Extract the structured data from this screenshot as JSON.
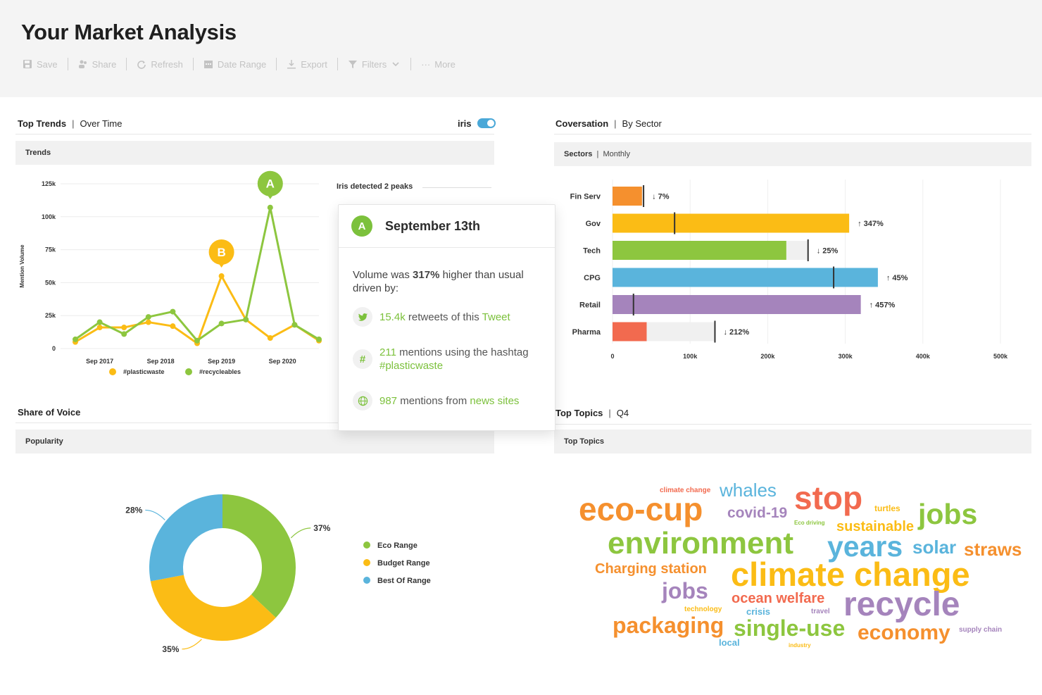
{
  "header": {
    "title": "Your Market Analysis",
    "toolbar": {
      "save": "Save",
      "share": "Share",
      "refresh": "Refresh",
      "date_range": "Date Range",
      "export": "Export",
      "filters": "Filters",
      "more": "More"
    }
  },
  "top_trends": {
    "title": "Top Trends",
    "subtitle": "Over Time",
    "toggle_label": "iris",
    "subbar": "Trends",
    "peaks_label": "Iris detected 2 peaks",
    "legend": [
      "#plasticwaste",
      "#recycleables"
    ],
    "peak_a": "A",
    "peak_b": "B"
  },
  "popup": {
    "badge": "A",
    "date": "September 13th",
    "msg_pre": "Volume was ",
    "msg_bold": "317%",
    "msg_post": " higher than usual driven by:",
    "row1_num": "15.4k",
    "row1_text": " retweets of this ",
    "row1_link": "Tweet",
    "row2_num": "211",
    "row2_text": " mentions using the hashtag ",
    "row2_link": "#plasticwaste",
    "row3_num": "987",
    "row3_text": " mentions from ",
    "row3_link": "news sites",
    "row2_icon": "#"
  },
  "conversation": {
    "title": "Coversation",
    "subtitle": "By Sector",
    "subbar": "Sectors",
    "subbar_thin": "Monthly"
  },
  "share_of_voice": {
    "title": "Share of Voice",
    "subbar": "Popularity"
  },
  "top_topics": {
    "title": "Top Topics",
    "subtitle": "Q4",
    "subbar": "Top Topics"
  },
  "colors": {
    "green": "#8dc63f",
    "yellow": "#fbbc15",
    "blue": "#5ab4dc",
    "orange": "#f5902e",
    "purple": "#a584bc",
    "red": "#f26a4f"
  },
  "chart_data": [
    {
      "type": "line",
      "ylabel": "Mention Volume",
      "ylim": [
        0,
        125000
      ],
      "yticks": [
        "0",
        "25k",
        "50k",
        "75k",
        "100k",
        "125k"
      ],
      "xticks": [
        "Sep 2017",
        "Sep 2018",
        "Sep 2019",
        "Sep 2020"
      ],
      "grid": true,
      "series": [
        {
          "name": "#plasticwaste",
          "color": "#fbbc15",
          "values": [
            5000,
            16000,
            16000,
            20000,
            17000,
            4000,
            55000,
            22000,
            8000,
            18000,
            6000
          ]
        },
        {
          "name": "#recycleables",
          "color": "#8dc63f",
          "values": [
            7000,
            20000,
            11000,
            24000,
            28000,
            6000,
            19000,
            22000,
            107000,
            18000,
            7000
          ]
        }
      ],
      "annotations": [
        {
          "label": "A",
          "index": 8,
          "series": 1
        },
        {
          "label": "B",
          "index": 6,
          "series": 0
        }
      ]
    },
    {
      "type": "bar",
      "orientation": "horizontal",
      "categories": [
        "Fin Serv",
        "Gov",
        "Tech",
        "CPG",
        "Retail",
        "Pharma"
      ],
      "values": [
        38000,
        305000,
        224000,
        342000,
        320000,
        44000
      ],
      "targets": [
        40000,
        80000,
        252000,
        285000,
        27000,
        132000
      ],
      "changes": [
        "↓ 7%",
        "↑ 347%",
        "↓ 25%",
        "↑ 45%",
        "↑ 457%",
        "↓ 212%"
      ],
      "xticks": [
        "0",
        "100k",
        "200k",
        "300k",
        "400k",
        "500k"
      ],
      "xlim": [
        0,
        500000
      ]
    },
    {
      "type": "pie",
      "donut": true,
      "labels": [
        "Eco Range",
        "Budget Range",
        "Best Of Range"
      ],
      "values": [
        37,
        35,
        28
      ],
      "value_labels": [
        "37%",
        "35%",
        "28%"
      ],
      "colors": [
        "#8dc63f",
        "#fbbc15",
        "#5ab4dc"
      ]
    }
  ],
  "word_cloud": [
    {
      "text": "climate change",
      "color": "#f26a4f"
    },
    {
      "text": "whales",
      "color": "#5ab4dc"
    },
    {
      "text": "stop",
      "color": "#f26a4f"
    },
    {
      "text": "turtles",
      "color": "#fbbc15"
    },
    {
      "text": "eco-cup",
      "color": "#f5902e"
    },
    {
      "text": "covid-19",
      "color": "#a584bc"
    },
    {
      "text": "Eco driving",
      "color": "#8dc63f"
    },
    {
      "text": "sustainable",
      "color": "#fbbc15"
    },
    {
      "text": "jobs",
      "color": "#8dc63f"
    },
    {
      "text": "environment",
      "color": "#8dc63f"
    },
    {
      "text": "years",
      "color": "#5ab4dc"
    },
    {
      "text": "solar",
      "color": "#5ab4dc"
    },
    {
      "text": "straws",
      "color": "#f5902e"
    },
    {
      "text": "Charging station",
      "color": "#f5902e"
    },
    {
      "text": "climate change",
      "color": "#fbbc15"
    },
    {
      "text": "jobs",
      "color": "#a584bc"
    },
    {
      "text": "ocean welfare",
      "color": "#f26a4f"
    },
    {
      "text": "technology",
      "color": "#fbbc15"
    },
    {
      "text": "crisis",
      "color": "#5ab4dc"
    },
    {
      "text": "travel",
      "color": "#a584bc"
    },
    {
      "text": "recycle",
      "color": "#a584bc"
    },
    {
      "text": "packaging",
      "color": "#f5902e"
    },
    {
      "text": "single-use",
      "color": "#8dc63f"
    },
    {
      "text": "economy",
      "color": "#f5902e"
    },
    {
      "text": "supply chain",
      "color": "#a584bc"
    },
    {
      "text": "local",
      "color": "#5ab4dc"
    },
    {
      "text": "industry",
      "color": "#fbbc15"
    }
  ]
}
